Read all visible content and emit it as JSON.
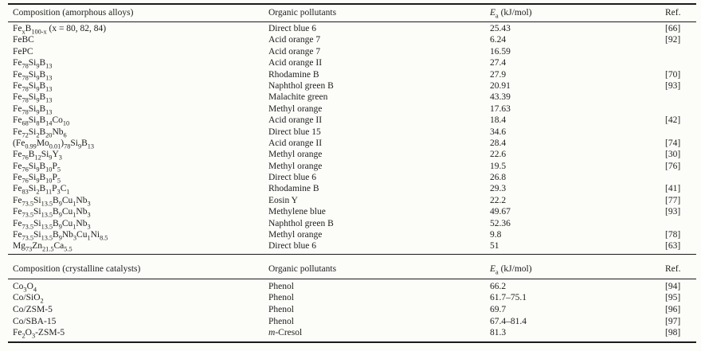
{
  "page": {
    "background": "#fcfcf9",
    "text_color": "#1d1d1d",
    "rule_color": "#1b1b1b"
  },
  "table": {
    "sections": [
      {
        "headers": [
          "Composition (amorphous alloys)",
          "Organic pollutants",
          "*E*~a~ (kJ/mol)",
          "Ref."
        ],
        "rows": [
          [
            "Fe~x~B~100-x~ (x = 80, 82, 84)",
            "Direct blue 6",
            "25.43",
            "[66]"
          ],
          [
            "FeBC",
            "Acid orange 7",
            "6.24",
            "[92]"
          ],
          [
            "FePC",
            "Acid orange 7",
            "16.59",
            ""
          ],
          [
            "Fe~78~Si~9~B~13~",
            "Acid orange II",
            "27.4",
            ""
          ],
          [
            "Fe~78~Si~9~B~13~",
            "Rhodamine B",
            "27.9",
            "[70]"
          ],
          [
            "Fe~78~Si~9~B~13~",
            "Naphthol green B",
            "20.91",
            "[93]"
          ],
          [
            "Fe~78~Si~9~B~13~",
            "Malachite green",
            "43.39",
            ""
          ],
          [
            "Fe~78~Si~9~B~13~",
            "Methyl orange",
            "17.63",
            ""
          ],
          [
            "Fe~68~Si~8~B~14~Co~10~",
            "Acid orange II",
            "18.4",
            "[42]"
          ],
          [
            "Fe~72~Si~2~B~20~Nb~6~",
            "Direct blue 15",
            "34.6",
            ""
          ],
          [
            "(Fe~0.99~Mo~0.01~)~78~Si~9~B~13~",
            "Acid orange II",
            "28.4",
            "[74]"
          ],
          [
            "Fe~76~B~12~Si~9~Y~3~",
            "Methyl orange",
            "22.6",
            "[30]"
          ],
          [
            "Fe~76~Si~9~B~10~P~5~",
            "Methyl orange",
            "19.5",
            "[76]"
          ],
          [
            "Fe~76~Si~9~B~10~P~5~",
            "Direct blue 6",
            "26.8",
            ""
          ],
          [
            "Fe~83~Si~2~B~11~P~3~C~1~",
            "Rhodamine B",
            "29.3",
            "[41]"
          ],
          [
            "Fe~73.5~Si~13.5~B~9~Cu~1~Nb~3~",
            "Eosin Y",
            "22.2",
            "[77]"
          ],
          [
            "Fe~73.5~Si~13.5~B~9~Cu~1~Nb~3~",
            "Methylene blue",
            "49.67",
            "[93]"
          ],
          [
            "Fe~73.5~Si~13.5~B~9~Cu~1~Nb~3~",
            "Naphthol green B",
            "52.36",
            ""
          ],
          [
            "Fe~73.5~Si~13.5~B~9~Nb~3~Cu~1~Ni~8.5~",
            "Methyl orange",
            "9.8",
            "[78]"
          ],
          [
            "Mg~73~Zn~21.5~Ca~5.5~",
            "Direct blue 6",
            "51",
            "[63]"
          ]
        ]
      },
      {
        "headers": [
          "Composition (crystalline catalysts)",
          "Organic pollutants",
          "*E*~a~ (kJ/mol)",
          "Ref."
        ],
        "rows": [
          [
            "Co~3~O~4~",
            "Phenol",
            "66.2",
            "[94]"
          ],
          [
            "Co/SiO~2~",
            "Phenol",
            "61.7–75.1",
            "[95]"
          ],
          [
            "Co/ZSM-5",
            "Phenol",
            "69.7",
            "[96]"
          ],
          [
            "Co/SBA-15",
            "Phenol",
            "67.4–81.4",
            "[97]"
          ],
          [
            "Fe~2~O~3~-ZSM-5",
            "*m*-Cresol",
            "81.3",
            "[98]"
          ]
        ]
      }
    ]
  }
}
